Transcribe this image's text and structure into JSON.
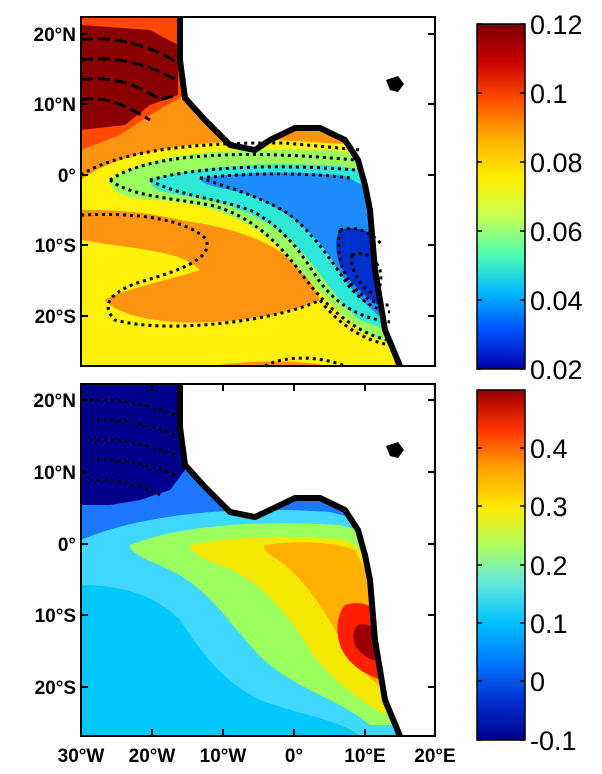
{
  "colors": {
    "top_colormap": [
      "#0000A8",
      "#0050FF",
      "#00B8FF",
      "#50FFB0",
      "#C8FF50",
      "#FFEE00",
      "#FFB000",
      "#FF5000",
      "#CC0000",
      "#7A0000"
    ],
    "bottom_colormap": [
      "#00008C",
      "#0030D0",
      "#0078FF",
      "#00C0FF",
      "#60E8E0",
      "#B0FF60",
      "#FFE800",
      "#FFA000",
      "#FF3000",
      "#9A0000"
    ],
    "land": "#FFFFFF",
    "coast": "#000000",
    "contour": "#000000"
  },
  "chart_data": [
    {
      "type": "contour map",
      "panel": "top",
      "xlabel": "",
      "ylabel": "",
      "xlim": [
        -30,
        20
      ],
      "ylim": [
        -26,
        23
      ],
      "y_ticks": [
        "20°N",
        "10°N",
        "0°",
        "10°S",
        "20°S"
      ],
      "colorbar": {
        "range": [
          0.02,
          0.12
        ],
        "ticks": [
          "0.12",
          "0.1",
          "0.08",
          "0.06",
          "0.04",
          "0.02"
        ]
      },
      "contours": "dashed lines for positive values above the northern Africa coast, dotted lines over the equatorial and southeastern Atlantic",
      "value_regions": [
        {
          "region": "northwest Africa coast (10°N-20°N, 30°W-20°W)",
          "value": 0.12
        },
        {
          "region": "west and northwest ocean",
          "value": 0.095
        },
        {
          "region": "central equatorial band",
          "value": 0.085
        },
        {
          "region": "Gulf of Guinea",
          "value": 0.06
        },
        {
          "region": "Angola coast (10°S-20°S)",
          "value": 0.02
        }
      ]
    },
    {
      "type": "contour map",
      "panel": "bottom",
      "xlabel": "",
      "ylabel": "",
      "xlim": [
        -30,
        20
      ],
      "ylim": [
        -26,
        23
      ],
      "x_ticks": [
        "30°W",
        "20°W",
        "10°W",
        "0°",
        "10°E",
        "20°E"
      ],
      "y_ticks": [
        "20°N",
        "10°N",
        "0°",
        "10°S",
        "20°S"
      ],
      "colorbar": {
        "range": [
          -0.1,
          0.5
        ],
        "ticks": [
          "0.4",
          "0.3",
          "0.2",
          "0.1",
          "0",
          "-0.1"
        ]
      },
      "contours": "dotted lines for negative values off the northwest Africa coast",
      "value_regions": [
        {
          "region": "northwest Africa coast",
          "value": -0.1
        },
        {
          "region": "north of the equator",
          "value": 0.0
        },
        {
          "region": "southwest ocean",
          "value": 0.15
        },
        {
          "region": "equatorial band",
          "value": 0.25
        },
        {
          "region": "central southeast Atlantic",
          "value": 0.32
        },
        {
          "region": "Angola coast (10°S-15°S)",
          "value": 0.48
        }
      ]
    }
  ]
}
